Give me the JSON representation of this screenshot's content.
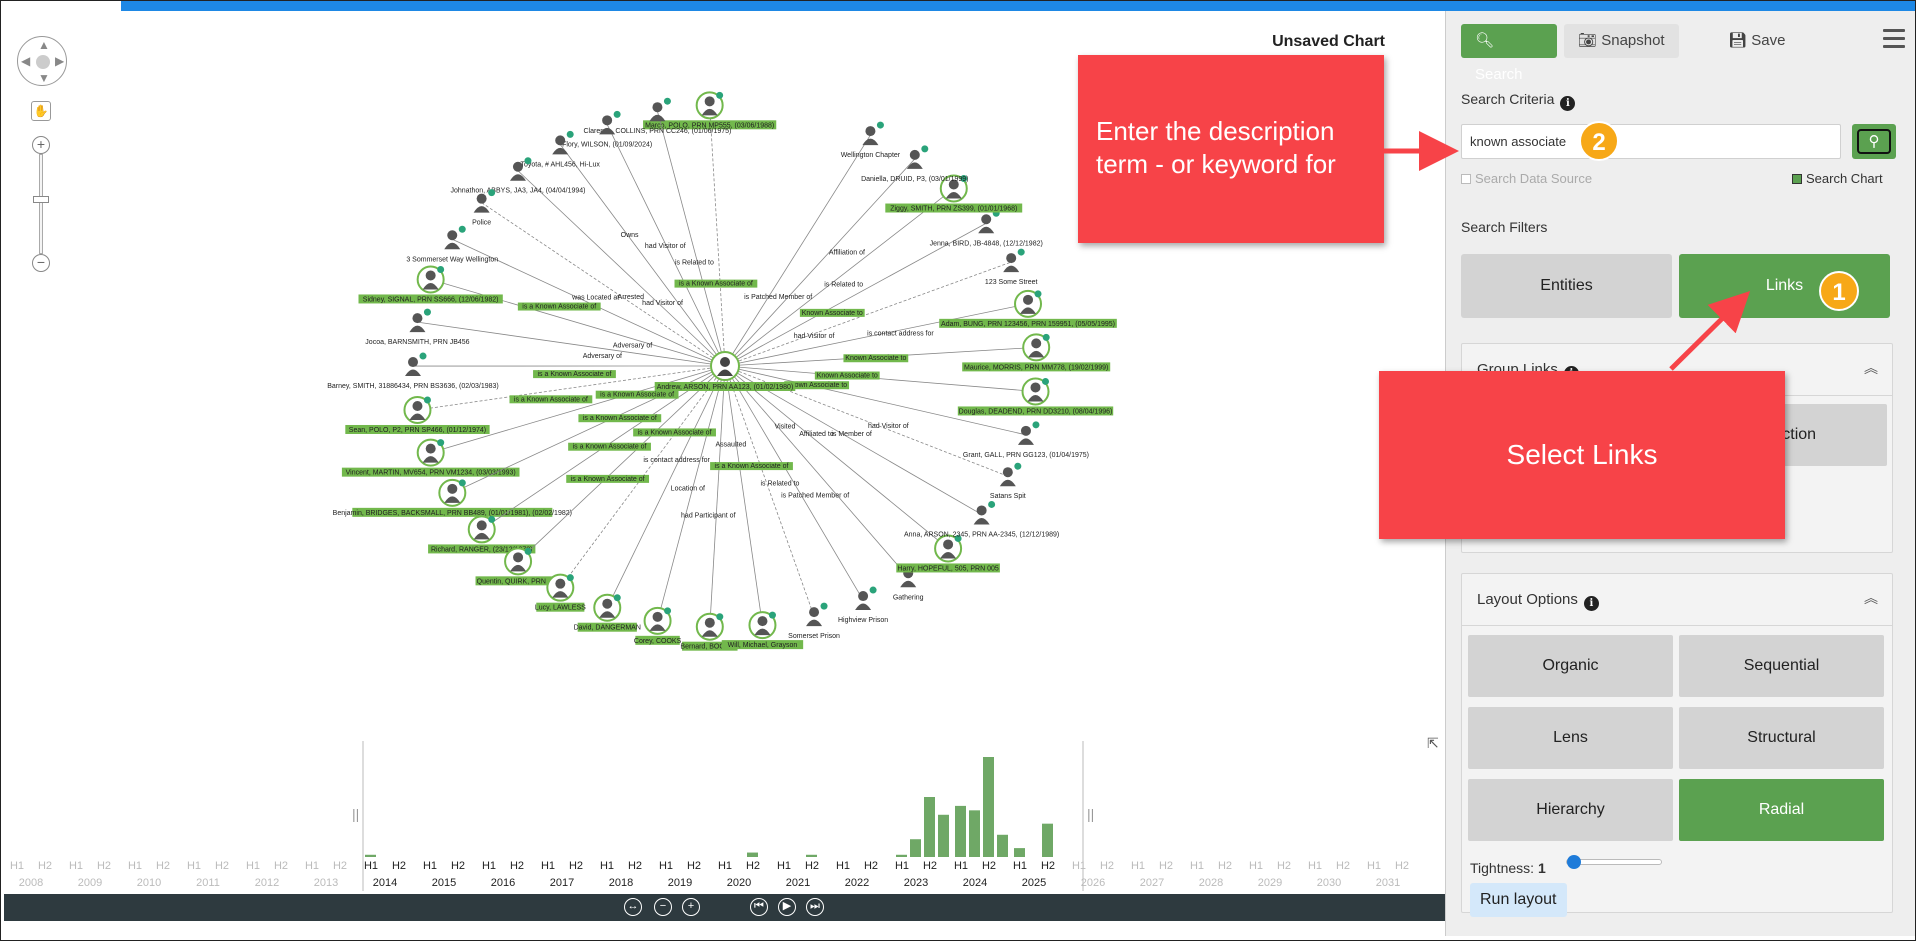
{
  "chart": {
    "title": "Unsaved Chart",
    "center": "Andrew, ARSON, PRN AA123, (01/02/1980)",
    "nodes": [
      {
        "label": "Marco, POLO, PRN MP555, (03/06/1988)",
        "hl": true
      },
      {
        "label": "Clarence, COLLINS, PRN CC246, (01/06/1975)",
        "hl": false
      },
      {
        "label": "Flory, WILSON, (01/09/2024)",
        "hl": false
      },
      {
        "label": "Toyota, # AHL456, Hi-Lux",
        "hl": false
      },
      {
        "label": "Johnathon, ABBYS, JA3, JA4, (04/04/1994)",
        "hl": false
      },
      {
        "label": "Police",
        "hl": false
      },
      {
        "label": "3 Sommerset Way Wellington",
        "hl": false
      },
      {
        "label": "Sidney, SIGNAL, PRN SS666, (12/06/1982)",
        "hl": true
      },
      {
        "label": "Jocoa, BARNSMITH, PRN JB456",
        "hl": false
      },
      {
        "label": "Barney, SMITH, 31886434, PRN BS3636, (02/03/1983)",
        "hl": false
      },
      {
        "label": "Sean, POLO, P2, PRN SP466, (01/12/1974)",
        "hl": true
      },
      {
        "label": "Vincent, MARTIN, MV654, PRN VM1234, (03/03/1993)",
        "hl": true
      },
      {
        "label": "Benjamin, BRIDGES, BACKSMALL, PRN BB489, (01/01/1981), (02/02/1982)",
        "hl": true
      },
      {
        "label": "Richard, RANGER, (23/12/1972)",
        "hl": true
      },
      {
        "label": "Quentin, QUIRK, PRN 443",
        "hl": true
      },
      {
        "label": "Lucy, LAWLESS",
        "hl": true
      },
      {
        "label": "David, DANGERMAN",
        "hl": true
      },
      {
        "label": "Corey, COOKS",
        "hl": true
      },
      {
        "label": "Bernard, BOOKER",
        "hl": true
      },
      {
        "label": "Will, Michael, Grayson",
        "hl": true
      },
      {
        "label": "Somerset Prison",
        "hl": false
      },
      {
        "label": "Highview Prison",
        "hl": false
      },
      {
        "label": "Gathering",
        "hl": false
      },
      {
        "label": "Harry, HOPEFUL, 505, PRN 005",
        "hl": true
      },
      {
        "label": "Anna, ARSON, 2345, PRN AA-2345, (12/12/1989)",
        "hl": false
      },
      {
        "label": "Satans Spit",
        "hl": false
      },
      {
        "label": "Grant, GALL, PRN GG123, (01/04/1975)",
        "hl": false
      },
      {
        "label": "Douglas, DEADEND, PRN DD3210, (08/04/1996)",
        "hl": true
      },
      {
        "label": "Maurice, MORRIS, PRN MM778, (19/02/1999)",
        "hl": true
      },
      {
        "label": "Adam, BUNG, PRN 123456, PRN 159951, (05/05/1995)",
        "hl": true
      },
      {
        "label": "123 Some Street",
        "hl": false
      },
      {
        "label": "Jenna, BIRD, JB-4848, (12/12/1982)",
        "hl": false
      },
      {
        "label": "Ziggy, SMITH, PRN ZS399, (01/01/1968)",
        "hl": true
      },
      {
        "label": "Daniella, DRUID, P3, (03/01/1999)",
        "hl": false
      },
      {
        "label": "Wellington Chapter",
        "hl": false
      }
    ],
    "link_labels": [
      "is a Known Associate of",
      "is Related to",
      "had Visitor of",
      "Owns",
      "had Visitor of",
      "Arrested",
      "was Located at",
      "is a Known Associate of",
      "Adversary of",
      "Adversary of",
      "is a Known Associate of",
      "is a Known Associate of",
      "is a Known Associate of",
      "is a Known Associate of",
      "is a Known Associate of",
      "is a Known Associate of",
      "is a Known Associate of",
      "is contact address for",
      "Location of",
      "had Participant of",
      "Assaulted",
      "is a Known Associate of",
      "is Related to",
      "is Patched Member of",
      "Visited",
      "Affiliated to",
      "is Member of",
      "had Visitor of",
      "Known Associate to",
      "Known Associate to",
      "Known Associate to",
      "is contact address for",
      "had Visitor of",
      "Known Associate to",
      "is Related to",
      "Affiliation of",
      "is Patched Member of"
    ]
  },
  "timeline": {
    "years": [
      "2008",
      "2009",
      "2010",
      "2011",
      "2012",
      "2013",
      "2014",
      "2015",
      "2016",
      "2017",
      "2018",
      "2019",
      "2020",
      "2021",
      "2022",
      "2023",
      "2024",
      "2025",
      "2026",
      "2027",
      "2028",
      "2029",
      "2030",
      "2031"
    ],
    "active_years": [
      "2014",
      "2015",
      "2016",
      "2017",
      "2018",
      "2019",
      "2020",
      "2021",
      "2022",
      "2023",
      "2024",
      "2025"
    ],
    "half_labels": [
      "H1",
      "H2"
    ],
    "bars": [
      {
        "year": "2014",
        "half": 1,
        "value": 1
      },
      {
        "year": "2020",
        "half": 2,
        "value": 2
      },
      {
        "year": "2021",
        "half": 2,
        "value": 1
      },
      {
        "year": "2023",
        "half": 1,
        "value": 1
      },
      {
        "year": "2023",
        "half": 1.5,
        "value": 8
      },
      {
        "year": "2023",
        "half": 2,
        "value": 27
      },
      {
        "year": "2023",
        "half": 2.5,
        "value": 19
      },
      {
        "year": "2024",
        "half": 1,
        "value": 23
      },
      {
        "year": "2024",
        "half": 1.5,
        "value": 21
      },
      {
        "year": "2024",
        "half": 2,
        "value": 45
      },
      {
        "year": "2024",
        "half": 2.5,
        "value": 10
      },
      {
        "year": "2025",
        "half": 1,
        "value": 4
      },
      {
        "year": "2025",
        "half": 2,
        "value": 15
      }
    ]
  },
  "panel": {
    "search_label": "Search",
    "snapshot_label": "Snapshot",
    "save_label": "Save",
    "search_criteria_label": "Search Criteria",
    "search_value": "known associate",
    "search_data_source": "Search Data Source",
    "search_chart": "Search Chart",
    "search_filters_label": "Search Filters",
    "entities_label": "Entities",
    "links_label": "Links",
    "group_links_label": "Group Links",
    "direction_label": "Direction",
    "layout_options_label": "Layout Options",
    "layouts": [
      "Organic",
      "Sequential",
      "Lens",
      "Structural",
      "Hierarchy",
      "Radial"
    ],
    "selected_layout": "Radial",
    "tightness_label": "Tightness:",
    "tightness_value": "1",
    "run_layout_label": "Run layout"
  },
  "callouts": {
    "c1_text": "Enter the description term - or keyword for",
    "c2_text": "Select Links",
    "badge1": "1",
    "badge2": "2"
  },
  "colors": {
    "accent_green": "#5ba150",
    "callout_red": "#f74348",
    "badge_orange": "#f7a817",
    "topbar_blue": "#1e88e5"
  }
}
